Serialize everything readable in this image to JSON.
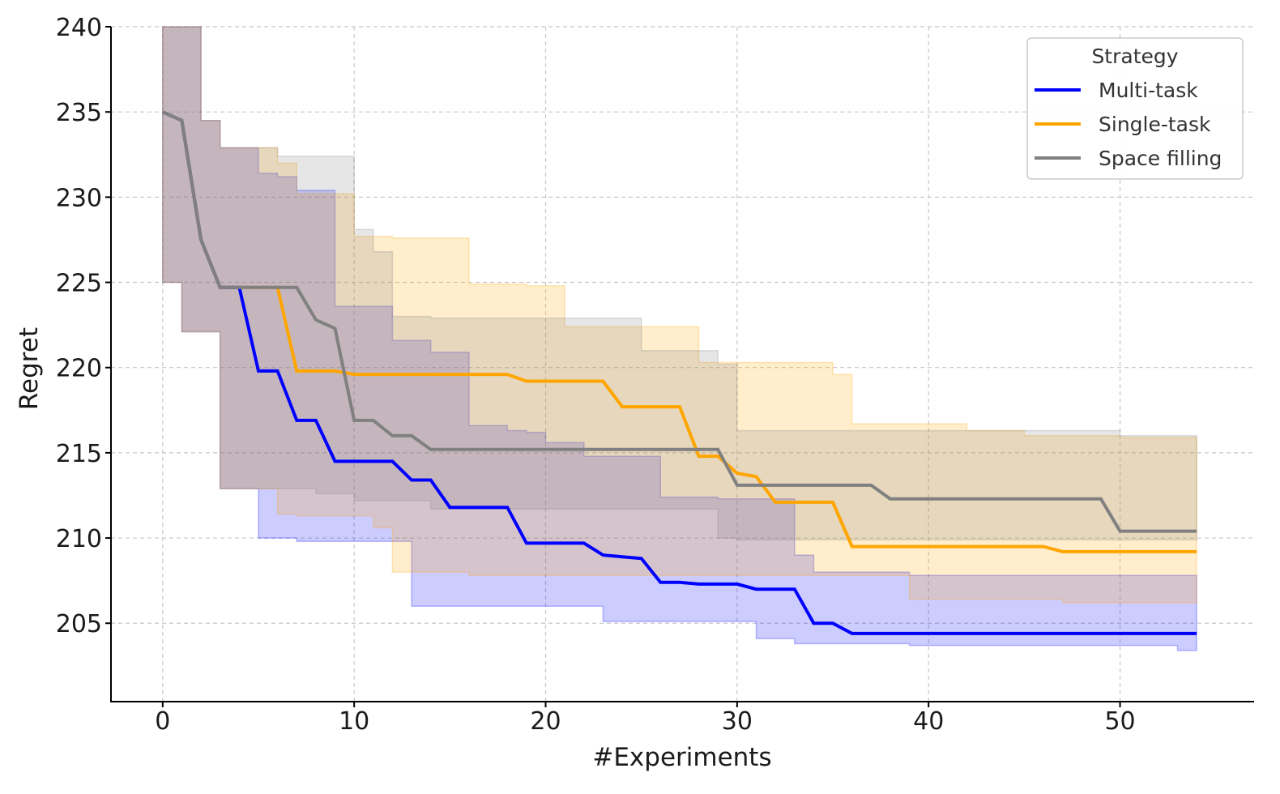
{
  "colors": {
    "multi": "#0000ff",
    "single": "#ffa500",
    "space": "#808080"
  },
  "chart_data": {
    "type": "line",
    "title": "",
    "xlabel": "#Experiments",
    "ylabel": "Regret",
    "xlim": [
      -2.7,
      57
    ],
    "ylim": [
      200.4,
      240
    ],
    "xticks": [
      0,
      10,
      20,
      30,
      40,
      50
    ],
    "yticks": [
      205,
      210,
      215,
      220,
      225,
      230,
      235,
      240
    ],
    "grid": true,
    "legend": {
      "title": "Strategy",
      "position": "top-right"
    },
    "x": [
      0,
      1,
      2,
      3,
      4,
      5,
      6,
      7,
      8,
      9,
      10,
      11,
      12,
      13,
      14,
      15,
      16,
      17,
      18,
      19,
      20,
      21,
      22,
      23,
      24,
      25,
      26,
      27,
      28,
      29,
      30,
      31,
      32,
      33,
      34,
      35,
      36,
      37,
      38,
      39,
      40,
      41,
      42,
      43,
      44,
      45,
      46,
      47,
      48,
      49,
      50,
      51,
      52,
      53,
      54
    ],
    "series": [
      {
        "name": "Multi-task",
        "color": "#0000ff",
        "mean": [
          235.0,
          234.5,
          227.5,
          224.7,
          224.7,
          219.8,
          219.8,
          216.9,
          216.9,
          214.5,
          214.5,
          214.5,
          214.5,
          213.4,
          213.4,
          211.8,
          211.8,
          211.8,
          211.8,
          209.7,
          209.7,
          209.7,
          209.7,
          209.0,
          208.9,
          208.8,
          207.4,
          207.4,
          207.3,
          207.3,
          207.3,
          207.0,
          207.0,
          207.0,
          205.0,
          205.0,
          204.4,
          204.4,
          204.4,
          204.4,
          204.4,
          204.4,
          204.4,
          204.4,
          204.4,
          204.4,
          204.4,
          204.4,
          204.4,
          204.4,
          204.4,
          204.4,
          204.4,
          204.4,
          204.4
        ],
        "upper": [
          240.0,
          240.0,
          234.5,
          232.9,
          232.9,
          231.4,
          231.2,
          230.4,
          230.4,
          223.6,
          223.6,
          223.6,
          221.6,
          221.6,
          220.9,
          220.9,
          216.6,
          216.6,
          216.3,
          216.2,
          215.6,
          215.6,
          214.8,
          214.8,
          214.8,
          214.8,
          212.4,
          212.4,
          212.4,
          212.3,
          212.3,
          212.3,
          212.3,
          209.0,
          208.0,
          208.0,
          208.0,
          208.0,
          208.0,
          207.8,
          207.8,
          207.8,
          207.8,
          207.8,
          207.8,
          207.8,
          207.8,
          207.8,
          207.8,
          207.8,
          207.8,
          207.8,
          207.8,
          207.8,
          207.8
        ],
        "lower": [
          225.0,
          222.1,
          222.1,
          212.9,
          212.9,
          210.0,
          210.0,
          209.8,
          209.8,
          209.8,
          209.8,
          209.8,
          209.8,
          206.0,
          206.0,
          206.0,
          206.0,
          206.0,
          206.0,
          206.0,
          206.0,
          206.0,
          206.0,
          205.1,
          205.1,
          205.1,
          205.1,
          205.1,
          205.1,
          205.1,
          205.1,
          204.1,
          204.1,
          203.8,
          203.8,
          203.8,
          203.8,
          203.8,
          203.8,
          203.7,
          203.7,
          203.7,
          203.7,
          203.7,
          203.7,
          203.7,
          203.7,
          203.7,
          203.7,
          203.7,
          203.7,
          203.7,
          203.7,
          203.4,
          203.4
        ]
      },
      {
        "name": "Single-task",
        "color": "#ffa500",
        "mean": [
          235.0,
          234.5,
          227.5,
          224.7,
          224.7,
          224.7,
          224.7,
          219.8,
          219.8,
          219.8,
          219.6,
          219.6,
          219.6,
          219.6,
          219.6,
          219.6,
          219.6,
          219.6,
          219.6,
          219.2,
          219.2,
          219.2,
          219.2,
          219.2,
          217.7,
          217.7,
          217.7,
          217.7,
          214.8,
          214.8,
          213.8,
          213.6,
          212.1,
          212.1,
          212.1,
          212.1,
          209.5,
          209.5,
          209.5,
          209.5,
          209.5,
          209.5,
          209.5,
          209.5,
          209.5,
          209.5,
          209.5,
          209.2,
          209.2,
          209.2,
          209.2,
          209.2,
          209.2,
          209.2,
          209.2
        ],
        "upper": [
          240.0,
          240.0,
          234.5,
          232.9,
          232.9,
          232.9,
          232.0,
          230.2,
          230.2,
          230.2,
          227.7,
          227.7,
          227.6,
          227.6,
          227.6,
          227.6,
          224.9,
          224.9,
          224.9,
          224.8,
          224.8,
          222.4,
          222.4,
          222.4,
          222.4,
          222.4,
          222.4,
          222.4,
          220.3,
          220.3,
          220.3,
          220.3,
          220.3,
          220.3,
          220.3,
          219.6,
          216.7,
          216.7,
          216.7,
          216.7,
          216.7,
          216.7,
          216.3,
          216.3,
          216.3,
          216.0,
          216.0,
          216.0,
          216.0,
          216.0,
          215.9,
          215.9,
          215.9,
          215.9,
          215.9
        ],
        "lower": [
          225.0,
          222.1,
          222.1,
          212.9,
          212.9,
          212.9,
          211.4,
          211.3,
          211.3,
          211.3,
          211.3,
          210.6,
          208.0,
          208.0,
          208.0,
          208.0,
          207.8,
          207.8,
          207.8,
          207.8,
          207.8,
          207.8,
          207.8,
          207.8,
          207.8,
          207.8,
          207.8,
          207.8,
          207.8,
          207.8,
          207.8,
          207.8,
          207.8,
          207.8,
          207.8,
          207.8,
          207.8,
          207.8,
          207.8,
          206.4,
          206.4,
          206.4,
          206.4,
          206.4,
          206.4,
          206.4,
          206.4,
          206.2,
          206.2,
          206.2,
          206.2,
          206.2,
          206.2,
          206.2,
          206.2
        ]
      },
      {
        "name": "Space filling",
        "color": "#808080",
        "mean": [
          235.0,
          234.5,
          227.5,
          224.7,
          224.7,
          224.7,
          224.7,
          224.7,
          222.8,
          222.3,
          216.9,
          216.9,
          216.0,
          216.0,
          215.2,
          215.2,
          215.2,
          215.2,
          215.2,
          215.2,
          215.2,
          215.2,
          215.2,
          215.2,
          215.2,
          215.2,
          215.2,
          215.2,
          215.2,
          215.2,
          213.1,
          213.1,
          213.1,
          213.1,
          213.1,
          213.1,
          213.1,
          213.1,
          212.3,
          212.3,
          212.3,
          212.3,
          212.3,
          212.3,
          212.3,
          212.3,
          212.3,
          212.3,
          212.3,
          212.3,
          210.4,
          210.4,
          210.4,
          210.4,
          210.4
        ],
        "upper": [
          240.0,
          240.0,
          234.5,
          232.9,
          232.9,
          232.9,
          232.4,
          232.4,
          232.4,
          232.4,
          228.1,
          226.8,
          223.0,
          223.0,
          222.9,
          222.9,
          222.9,
          222.9,
          222.9,
          222.9,
          222.9,
          222.9,
          222.9,
          222.9,
          222.9,
          221.0,
          221.0,
          221.0,
          221.0,
          220.2,
          216.3,
          216.3,
          216.3,
          216.3,
          216.3,
          216.3,
          216.3,
          216.3,
          216.3,
          216.3,
          216.3,
          216.3,
          216.3,
          216.3,
          216.3,
          216.3,
          216.3,
          216.3,
          216.3,
          216.3,
          216.0,
          216.0,
          216.0,
          216.0,
          216.0
        ],
        "lower": [
          225.0,
          222.1,
          222.1,
          212.9,
          212.9,
          212.9,
          212.9,
          212.9,
          212.6,
          212.6,
          212.2,
          212.2,
          212.2,
          212.2,
          211.7,
          211.7,
          211.7,
          211.7,
          211.7,
          211.7,
          211.7,
          211.7,
          211.7,
          211.7,
          211.7,
          211.7,
          211.7,
          211.7,
          211.7,
          210.0,
          209.9,
          209.9,
          209.9,
          209.9,
          209.9,
          209.9,
          209.9,
          209.9,
          209.9,
          209.9,
          209.9,
          209.9,
          209.9,
          209.9,
          209.9,
          209.9,
          209.9,
          209.9,
          209.9,
          209.9,
          209.9,
          209.9,
          209.9,
          209.9,
          209.9
        ]
      }
    ]
  }
}
